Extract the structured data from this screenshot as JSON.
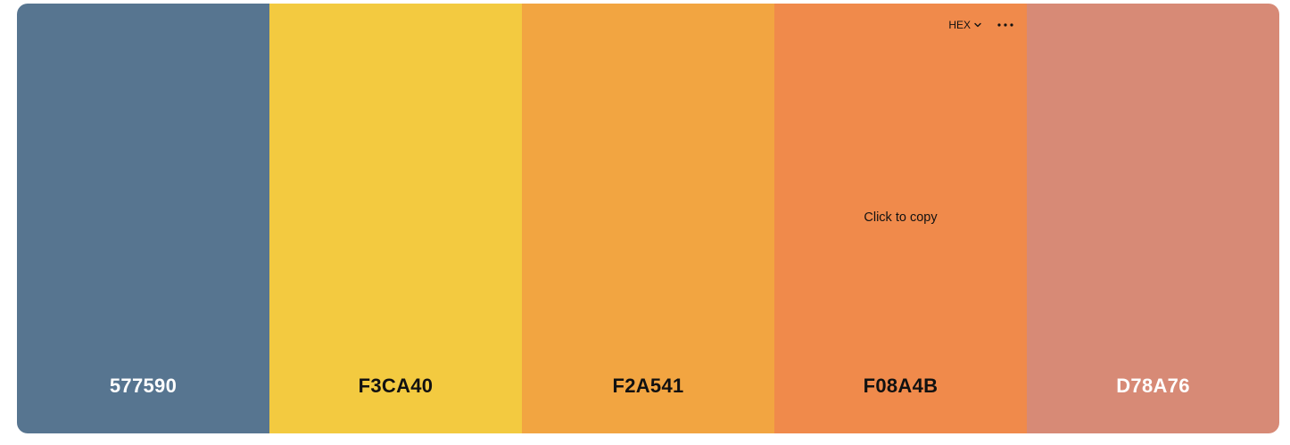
{
  "toolbar": {
    "format_label": "HEX",
    "format_icon": "chevron-down-icon",
    "more_icon": "more-horizontal-icon"
  },
  "hover_hint": "Click to copy",
  "swatches": [
    {
      "hex": "577590",
      "color": "#577590",
      "text_tone": "light"
    },
    {
      "hex": "F3CA40",
      "color": "#F3CA40",
      "text_tone": "dark"
    },
    {
      "hex": "F2A541",
      "color": "#F2A541",
      "text_tone": "dark"
    },
    {
      "hex": "F08A4B",
      "color": "#F08A4B",
      "text_tone": "dark"
    },
    {
      "hex": "D78A76",
      "color": "#D78A76",
      "text_tone": "light"
    }
  ]
}
